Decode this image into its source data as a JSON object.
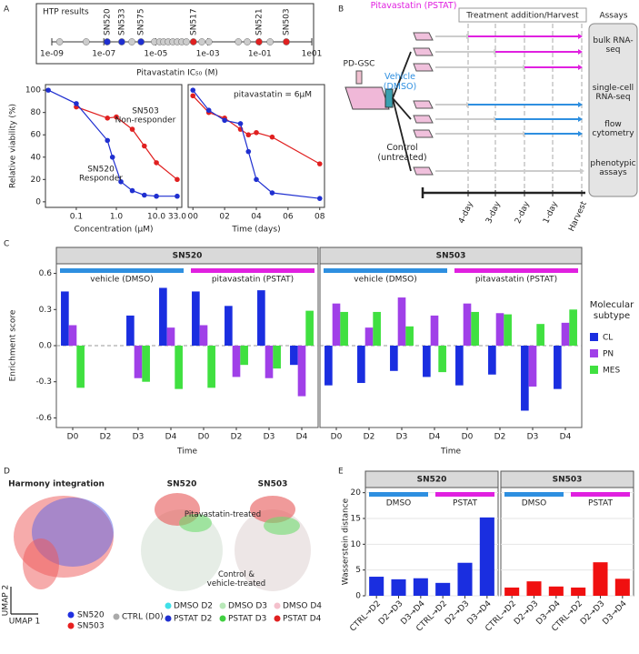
{
  "panel_labels": [
    "A",
    "B",
    "C",
    "D",
    "E"
  ],
  "chart_data": [
    {
      "type": "strip",
      "title": "HTP results",
      "xlabel": "Pitavastatin IC₅₀ (M)",
      "log_x": true,
      "xlim": [
        1e-09,
        10
      ],
      "xticks": [
        {
          "value": 1e-09,
          "label": "1e-09"
        },
        {
          "value": 1e-07,
          "label": "1e-07"
        },
        {
          "value": 1e-05,
          "label": "1e-05"
        },
        {
          "value": 0.001,
          "label": "1e-03"
        },
        {
          "value": 0.1,
          "label": "1e-01"
        },
        {
          "value": 10,
          "label": "1e01"
        }
      ],
      "categories": [
        null,
        null,
        "SN520",
        "SN533",
        null,
        "SN575",
        null,
        null,
        null,
        null,
        null,
        null,
        null,
        null,
        "SN517",
        null,
        null,
        null,
        null,
        "SN521",
        null,
        "SN503"
      ],
      "values": [
        2e-09,
        2.1e-08,
        1.35e-07,
        4.9e-07,
        1.2e-06,
        2.7e-06,
        8.9e-06,
        1.4e-05,
        2e-05,
        3e-05,
        4.5e-05,
        6.7e-05,
        0.0001,
        0.00015,
        0.00028,
        0.00059,
        0.0011,
        0.015,
        0.033,
        0.093,
        0.25,
        1.05
      ],
      "colors": [
        "#cccccc",
        "#cccccc",
        "#1f2fd0",
        "#1f2fd0",
        "#cccccc",
        "#1f2fd0",
        "#cccccc",
        "#cccccc",
        "#cccccc",
        "#cccccc",
        "#cccccc",
        "#cccccc",
        "#cccccc",
        "#cccccc",
        "#e02020",
        "#cccccc",
        "#cccccc",
        "#cccccc",
        "#cccccc",
        "#e02020",
        "#cccccc",
        "#e02020"
      ]
    },
    {
      "type": "line",
      "markers": true,
      "xlabel": "Concentration (μM)",
      "ylabel": "Relative viability (%)",
      "log_x": true,
      "xlim": [
        0.017,
        43
      ],
      "xticks": [
        0.1,
        {
          "value": 1,
          "label": "1.0"
        },
        {
          "value": 10,
          "label": "10.0"
        },
        {
          "value": 33,
          "label": "33.0"
        }
      ],
      "ylim": [
        -5,
        105
      ],
      "yticks": [
        0,
        20,
        40,
        60,
        80,
        100
      ],
      "annotations": [
        {
          "text": "SN503",
          "color": "#e02020"
        },
        {
          "text": "Non-responder",
          "color": "#e02020"
        },
        {
          "text": "SN520",
          "color": "#1f2fd0"
        },
        {
          "text": "Responder",
          "color": "#1f2fd0"
        }
      ],
      "series": [
        {
          "color": "#e02020",
          "x": [
            0.1,
            0.6,
            1.0,
            2.5,
            5,
            10,
            33
          ],
          "values": [
            85,
            75,
            76,
            65,
            50,
            35,
            20
          ]
        },
        {
          "color": "#1f2fd0",
          "x": [
            0.02,
            0.1,
            0.6,
            0.8,
            1.3,
            2.5,
            5,
            10,
            33
          ],
          "values": [
            100,
            88,
            55,
            40,
            18,
            10,
            6,
            5,
            5
          ]
        }
      ]
    },
    {
      "type": "line",
      "markers": true,
      "xlabel": "Time (days)",
      "xlim": [
        -0.3,
        8.3
      ],
      "xticks": [
        {
          "value": 0,
          "label": "00"
        },
        {
          "value": 2,
          "label": "02"
        },
        {
          "value": 4,
          "label": "04"
        },
        {
          "value": 6,
          "label": "06"
        },
        {
          "value": 8,
          "label": "08"
        }
      ],
      "ylim": [
        -5,
        105
      ],
      "annotations": [
        {
          "text": "pitavastatin = 6μM",
          "color": "#000000"
        }
      ],
      "series": [
        {
          "color": "#e02020",
          "x": [
            0,
            1,
            2,
            3,
            3.5,
            4,
            5,
            8
          ],
          "values": [
            95,
            80,
            75,
            65,
            60,
            62,
            58,
            34
          ]
        },
        {
          "color": "#1f2fd0",
          "x": [
            0,
            1,
            2,
            3,
            3.5,
            4,
            5,
            8
          ],
          "values": [
            100,
            82,
            73,
            70,
            45,
            20,
            8,
            3
          ]
        }
      ]
    },
    {
      "type": "bar",
      "ylabel": "Enrichment score",
      "ylim": [
        -0.68,
        0.68
      ],
      "yticks": [
        -0.6,
        -0.3,
        {
          "value": 0,
          "label": "0.0"
        },
        0.3,
        0.6
      ],
      "categories": [
        "D0",
        "D2",
        "D3",
        "D4",
        "D0",
        "D2",
        "D3",
        "D4"
      ],
      "groups": [
        {
          "name": "vehicle (DMSO)",
          "color": "#2e8fe0"
        },
        {
          "name": "pitavastatin (PSTAT)",
          "color": "#e020e0"
        }
      ],
      "legend_title": "Molecular subtype",
      "legend": [
        {
          "name": "CL",
          "color": "#1a2ee0"
        },
        {
          "name": "PN",
          "color": "#a040e8"
        },
        {
          "name": "MES",
          "color": "#40e040"
        }
      ],
      "facets": [
        {
          "title": "SN520",
          "xlabel": "Time",
          "series": [
            {
              "values": [
                0.45,
                null,
                0.25,
                0.48,
                0.45,
                0.33,
                0.46,
                -0.16
              ]
            },
            {
              "values": [
                0.17,
                null,
                -0.27,
                0.15,
                0.17,
                -0.26,
                -0.27,
                -0.42
              ]
            },
            {
              "values": [
                -0.35,
                null,
                -0.3,
                -0.36,
                -0.35,
                -0.16,
                -0.19,
                0.29
              ]
            }
          ]
        },
        {
          "title": "SN503",
          "xlabel": "Time",
          "series": [
            {
              "values": [
                -0.33,
                -0.31,
                -0.21,
                -0.26,
                -0.33,
                -0.24,
                -0.54,
                -0.36
              ]
            },
            {
              "values": [
                0.35,
                0.15,
                0.4,
                0.25,
                0.35,
                0.27,
                -0.34,
                0.19
              ]
            },
            {
              "values": [
                0.28,
                0.28,
                0.16,
                -0.22,
                0.28,
                0.26,
                0.18,
                0.3
              ]
            }
          ]
        }
      ]
    },
    {
      "type": "bar",
      "ylabel": "Wasserstein distance",
      "ylim": [
        0,
        21
      ],
      "yticks": [
        0,
        5,
        10,
        15,
        20
      ],
      "grid": true,
      "categories": [
        "CTRL→D2",
        "D2→D3",
        "D3→D4",
        "CTRL→D2",
        "D2→D3",
        "D3→D4"
      ],
      "groups": [
        {
          "name": "DMSO",
          "color": "#2e8fe0"
        },
        {
          "name": "PSTAT",
          "color": "#e020e0"
        }
      ],
      "facets": [
        {
          "title": "SN520",
          "color": "#1a2ee0",
          "values": [
            3.7,
            3.2,
            3.4,
            2.5,
            6.4,
            15.2
          ]
        },
        {
          "title": "SN503",
          "color": "#f01010",
          "values": [
            1.6,
            2.8,
            1.8,
            1.6,
            6.5,
            3.3
          ]
        }
      ]
    }
  ],
  "diagram": {
    "groups": [
      {
        "label": "Pitavastatin (PSTAT)",
        "color": "#e020e0"
      },
      {
        "label": "Vehicle (DMSO)",
        "color": "#2e8fe0"
      },
      {
        "label": "Control (untreated)",
        "color": "#222222"
      }
    ],
    "header": "Treatment addition/Harvest",
    "assays_title": "Assays",
    "source": "PD-GSC",
    "assays": [
      "bulk RNA-seq",
      "single-cell RNA-seq",
      "flow cytometry",
      "phenotypic assays"
    ],
    "timepoints": [
      "4-day",
      "3-day",
      "2-day",
      "1-day",
      "Harvest"
    ]
  },
  "umap": {
    "titles": [
      "Harmony integration",
      "SN520",
      "SN503"
    ],
    "annotations": [
      "Pitavastatin-treated",
      "Control & vehicle-treated"
    ],
    "axes": [
      "UMAP 2",
      "UMAP 1"
    ],
    "legend_left": [
      {
        "name": "SN520",
        "color": "#2030e0"
      },
      {
        "name": "SN503",
        "color": "#e82020"
      }
    ],
    "legend_right": [
      {
        "name": "CTRL (D0)",
        "color": "#aaaaaa"
      },
      {
        "name": "DMSO D2",
        "color": "#40e0e8"
      },
      {
        "name": "DMSO D3",
        "color": "#b8e8b8"
      },
      {
        "name": "DMSO D4",
        "color": "#f4c0cc"
      },
      {
        "name": "PSTAT D2",
        "color": "#2030d0"
      },
      {
        "name": "PSTAT D3",
        "color": "#40d040"
      },
      {
        "name": "PSTAT D4",
        "color": "#e02020"
      }
    ]
  }
}
